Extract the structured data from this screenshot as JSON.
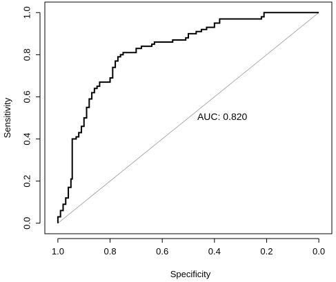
{
  "chart_data": {
    "type": "line",
    "title": "",
    "xlabel": "Specificity",
    "ylabel": "Sensitivity",
    "x_reversed": true,
    "xlim": [
      1.05,
      -0.05
    ],
    "ylim": [
      -0.05,
      1.05
    ],
    "x_ticks": [
      {
        "value": 1.0,
        "label": "1.0"
      },
      {
        "value": 0.8,
        "label": "0.8"
      },
      {
        "value": 0.6,
        "label": "0.6"
      },
      {
        "value": 0.4,
        "label": "0.4"
      },
      {
        "value": 0.2,
        "label": "0.2"
      },
      {
        "value": 0.0,
        "label": "0.0"
      }
    ],
    "y_ticks": [
      {
        "value": 0.0,
        "label": "0.0"
      },
      {
        "value": 0.2,
        "label": "0.2"
      },
      {
        "value": 0.4,
        "label": "0.4"
      },
      {
        "value": 0.6,
        "label": "0.6"
      },
      {
        "value": 0.8,
        "label": "0.8"
      },
      {
        "value": 1.0,
        "label": "1.0"
      }
    ],
    "annotation": {
      "text": "AUC: 0.820",
      "x": 0.37,
      "y": 0.49
    },
    "reference_line": {
      "name": "chance",
      "from": [
        1.0,
        0.0
      ],
      "to": [
        0.0,
        1.0
      ],
      "color": "#aaaaaa"
    },
    "grid": false,
    "series": [
      {
        "color": "#000000",
        "points": [
          [
            1.0,
            0.0
          ],
          [
            1.0,
            0.03
          ],
          [
            0.99,
            0.03
          ],
          [
            0.99,
            0.06
          ],
          [
            0.98,
            0.06
          ],
          [
            0.98,
            0.09
          ],
          [
            0.97,
            0.09
          ],
          [
            0.97,
            0.12
          ],
          [
            0.96,
            0.12
          ],
          [
            0.96,
            0.17
          ],
          [
            0.95,
            0.17
          ],
          [
            0.95,
            0.21
          ],
          [
            0.945,
            0.21
          ],
          [
            0.945,
            0.4
          ],
          [
            0.93,
            0.4
          ],
          [
            0.93,
            0.41
          ],
          [
            0.92,
            0.41
          ],
          [
            0.92,
            0.43
          ],
          [
            0.91,
            0.43
          ],
          [
            0.91,
            0.46
          ],
          [
            0.9,
            0.46
          ],
          [
            0.9,
            0.5
          ],
          [
            0.89,
            0.5
          ],
          [
            0.89,
            0.55
          ],
          [
            0.88,
            0.55
          ],
          [
            0.88,
            0.59
          ],
          [
            0.87,
            0.59
          ],
          [
            0.87,
            0.62
          ],
          [
            0.86,
            0.62
          ],
          [
            0.86,
            0.64
          ],
          [
            0.85,
            0.64
          ],
          [
            0.85,
            0.65
          ],
          [
            0.84,
            0.65
          ],
          [
            0.84,
            0.67
          ],
          [
            0.8,
            0.67
          ],
          [
            0.8,
            0.69
          ],
          [
            0.79,
            0.69
          ],
          [
            0.79,
            0.74
          ],
          [
            0.78,
            0.74
          ],
          [
            0.78,
            0.77
          ],
          [
            0.77,
            0.77
          ],
          [
            0.77,
            0.79
          ],
          [
            0.76,
            0.79
          ],
          [
            0.76,
            0.8
          ],
          [
            0.75,
            0.8
          ],
          [
            0.75,
            0.81
          ],
          [
            0.7,
            0.81
          ],
          [
            0.7,
            0.83
          ],
          [
            0.68,
            0.83
          ],
          [
            0.68,
            0.84
          ],
          [
            0.64,
            0.84
          ],
          [
            0.64,
            0.85
          ],
          [
            0.63,
            0.85
          ],
          [
            0.63,
            0.86
          ],
          [
            0.56,
            0.86
          ],
          [
            0.56,
            0.87
          ],
          [
            0.51,
            0.87
          ],
          [
            0.51,
            0.88
          ],
          [
            0.5,
            0.88
          ],
          [
            0.5,
            0.9
          ],
          [
            0.47,
            0.9
          ],
          [
            0.47,
            0.91
          ],
          [
            0.45,
            0.91
          ],
          [
            0.45,
            0.92
          ],
          [
            0.43,
            0.92
          ],
          [
            0.43,
            0.93
          ],
          [
            0.4,
            0.93
          ],
          [
            0.4,
            0.95
          ],
          [
            0.38,
            0.95
          ],
          [
            0.38,
            0.97
          ],
          [
            0.22,
            0.97
          ],
          [
            0.22,
            0.98
          ],
          [
            0.21,
            0.98
          ],
          [
            0.21,
            1.0
          ],
          [
            0.0,
            1.0
          ]
        ]
      }
    ]
  }
}
